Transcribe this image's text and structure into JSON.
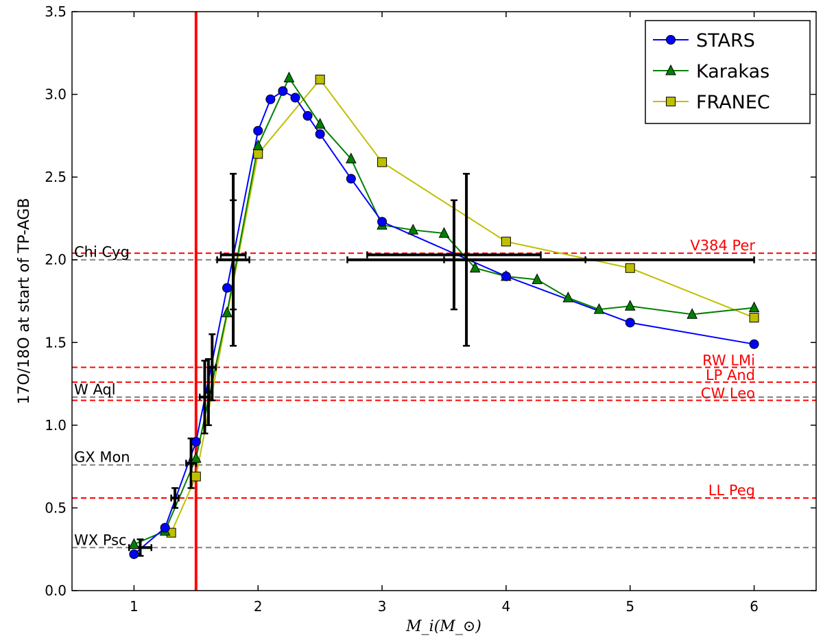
{
  "chart_data": {
    "type": "line",
    "title": "",
    "xlabel": "M_i(M_⊙)",
    "ylabel": "17O/18O at start of TP-AGB",
    "xlim": [
      0.5,
      6.5
    ],
    "ylim": [
      0.0,
      3.5
    ],
    "xticks": [
      "1",
      "2",
      "3",
      "4",
      "5",
      "6"
    ],
    "yticks": [
      "0.0",
      "0.5",
      "1.0",
      "1.5",
      "2.0",
      "2.5",
      "3.0",
      "3.5"
    ],
    "grid": false,
    "legend_position": "top-right",
    "series": [
      {
        "name": "STARS",
        "color": "#0000ff",
        "marker": "circle",
        "x": [
          1.0,
          1.25,
          1.5,
          1.75,
          2.0,
          2.1,
          2.2,
          2.3,
          2.4,
          2.5,
          2.75,
          3.0,
          4.0,
          5.0,
          6.0
        ],
        "y": [
          0.22,
          0.38,
          0.9,
          1.83,
          2.78,
          2.97,
          3.02,
          2.98,
          2.87,
          2.76,
          2.49,
          2.23,
          1.9,
          1.62,
          1.49
        ]
      },
      {
        "name": "Karakas",
        "color": "#008000",
        "marker": "triangle",
        "x": [
          1.0,
          1.25,
          1.5,
          1.75,
          2.0,
          2.25,
          2.5,
          2.75,
          3.0,
          3.25,
          3.5,
          3.75,
          4.0,
          4.25,
          4.5,
          4.75,
          5.0,
          5.5,
          6.0
        ],
        "y": [
          0.28,
          0.36,
          0.8,
          1.68,
          2.69,
          3.1,
          2.82,
          2.61,
          2.21,
          2.18,
          2.16,
          1.95,
          1.9,
          1.88,
          1.77,
          1.7,
          1.72,
          1.67,
          1.71
        ]
      },
      {
        "name": "FRANEC",
        "color": "#bfbf00",
        "marker": "square",
        "x": [
          1.3,
          1.5,
          2.0,
          2.5,
          3.0,
          4.0,
          5.0,
          6.0
        ],
        "y": [
          0.35,
          0.69,
          2.64,
          3.09,
          2.59,
          2.11,
          1.95,
          1.65
        ]
      }
    ],
    "vertical_line": {
      "x": 1.5,
      "color": "#ff0000"
    },
    "reference_lines": [
      {
        "label": "Chi Cyg",
        "y": 2.0,
        "color": "#808080"
      },
      {
        "label": "W Aql",
        "y": 1.17,
        "color": "#808080"
      },
      {
        "label": "GX Mon",
        "y": 0.76,
        "color": "#808080"
      },
      {
        "label": "WX Psc",
        "y": 0.26,
        "color": "#808080"
      },
      {
        "label": "V384 Per",
        "y": 2.04,
        "color": "#ff0000"
      },
      {
        "label": "RW LMi",
        "y": 1.35,
        "color": "#ff0000"
      },
      {
        "label": "LP And",
        "y": 1.26,
        "color": "#ff0000"
      },
      {
        "label": "CW Leo",
        "y": 1.15,
        "color": "#ff0000"
      },
      {
        "label": "LL Peg",
        "y": 0.56,
        "color": "#ff0000"
      }
    ],
    "error_bars": [
      {
        "x": 1.05,
        "y": 0.26,
        "xerr": 0.09,
        "yerr": 0.05
      },
      {
        "x": 1.33,
        "y": 0.56,
        "xerr": 0.03,
        "yerr": 0.06
      },
      {
        "x": 1.46,
        "y": 0.77,
        "xerr": 0.04,
        "yerr": 0.15
      },
      {
        "x": 1.57,
        "y": 1.17,
        "xerr": 0.04,
        "yerr": 0.22
      },
      {
        "x": 1.6,
        "y": 1.2,
        "xerr": 0.03,
        "yerr": 0.2
      },
      {
        "x": 1.63,
        "y": 1.35,
        "xerr": 0.03,
        "yerr": 0.2
      },
      {
        "x": 1.8,
        "y": 2.0,
        "xerr": 0.13,
        "yerr": 0.52
      },
      {
        "x": 1.8,
        "y": 2.03,
        "xerr": 0.1,
        "yerr": 0.33
      },
      {
        "x": 3.58,
        "y": 2.03,
        "xerr": 0.7,
        "yerr": 0.33
      },
      {
        "x": 3.68,
        "y": 2.0,
        "xerr": 0.96,
        "yerr": 0.52
      },
      {
        "x": 4.75,
        "y": 2.0,
        "xerr": 1.25,
        "yerr": 0.0
      }
    ]
  }
}
